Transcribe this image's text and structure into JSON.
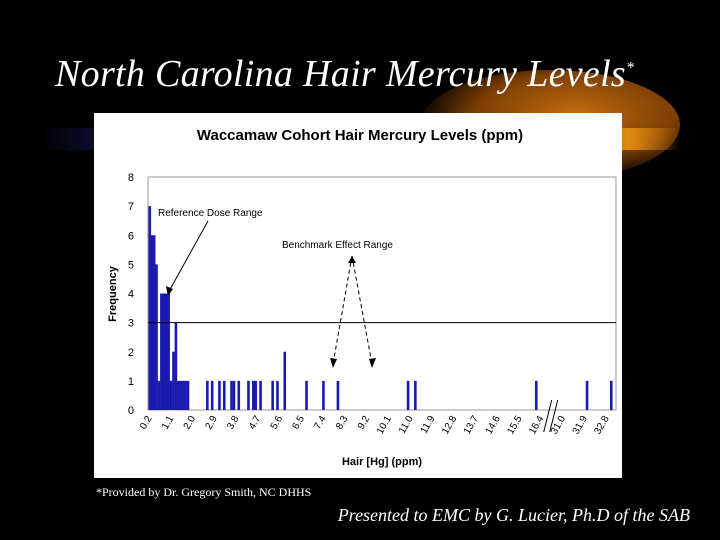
{
  "slide": {
    "title": "North Carolina Hair Mercury Levels",
    "title_mark": "*",
    "footnote": "*Provided by Dr. Gregory Smith, NC DHHS",
    "presenter": "Presented to EMC by G. Lucier, Ph.D of the SAB"
  },
  "chart_data": {
    "type": "bar",
    "title": "Waccamaw Cohort Hair Mercury Levels (ppm)",
    "xlabel": "Hair [Hg] (ppm)",
    "ylabel": "Frequency",
    "ylim": [
      0,
      8
    ],
    "yticks": [
      0,
      1,
      2,
      3,
      4,
      5,
      6,
      7,
      8
    ],
    "xtick_labels": [
      "0.2",
      "1.1",
      "2.0",
      "2.9",
      "3.8",
      "4.7",
      "5.6",
      "6.5",
      "7.4",
      "8.3",
      "9.2",
      "10.1",
      "11.0",
      "11.9",
      "12.8",
      "13.7",
      "14.6",
      "15.5",
      "16.4",
      "31.0",
      "31.9",
      "32.8"
    ],
    "axis_break_after": "16.4",
    "reference_line": 3,
    "bar_color": "#1a1ab0",
    "values": [
      {
        "x": 0.2,
        "y": 7
      },
      {
        "x": 0.3,
        "y": 6
      },
      {
        "x": 0.4,
        "y": 6
      },
      {
        "x": 0.5,
        "y": 5
      },
      {
        "x": 0.6,
        "y": 1
      },
      {
        "x": 0.7,
        "y": 4
      },
      {
        "x": 0.8,
        "y": 4
      },
      {
        "x": 0.9,
        "y": 4
      },
      {
        "x": 1.0,
        "y": 4
      },
      {
        "x": 1.1,
        "y": 1
      },
      {
        "x": 1.2,
        "y": 2
      },
      {
        "x": 1.3,
        "y": 3
      },
      {
        "x": 1.4,
        "y": 1
      },
      {
        "x": 1.5,
        "y": 1
      },
      {
        "x": 1.6,
        "y": 1
      },
      {
        "x": 1.7,
        "y": 1
      },
      {
        "x": 1.8,
        "y": 1
      },
      {
        "x": 2.6,
        "y": 1
      },
      {
        "x": 2.8,
        "y": 1
      },
      {
        "x": 3.1,
        "y": 1
      },
      {
        "x": 3.3,
        "y": 1
      },
      {
        "x": 3.6,
        "y": 1
      },
      {
        "x": 3.7,
        "y": 1
      },
      {
        "x": 3.9,
        "y": 1
      },
      {
        "x": 4.3,
        "y": 1
      },
      {
        "x": 4.5,
        "y": 1
      },
      {
        "x": 4.6,
        "y": 1
      },
      {
        "x": 4.8,
        "y": 1
      },
      {
        "x": 5.3,
        "y": 1
      },
      {
        "x": 5.5,
        "y": 1
      },
      {
        "x": 5.8,
        "y": 2
      },
      {
        "x": 6.7,
        "y": 1
      },
      {
        "x": 7.4,
        "y": 1
      },
      {
        "x": 8.0,
        "y": 1
      },
      {
        "x": 10.9,
        "y": 1
      },
      {
        "x": 11.2,
        "y": 1
      },
      {
        "x": 16.2,
        "y": 1
      },
      {
        "x": 32.0,
        "y": 1
      },
      {
        "x": 33.0,
        "y": 1
      }
    ],
    "annotations": {
      "reference_dose": "Reference Dose Range",
      "benchmark_effect": "Benchmark Effect Range"
    }
  }
}
